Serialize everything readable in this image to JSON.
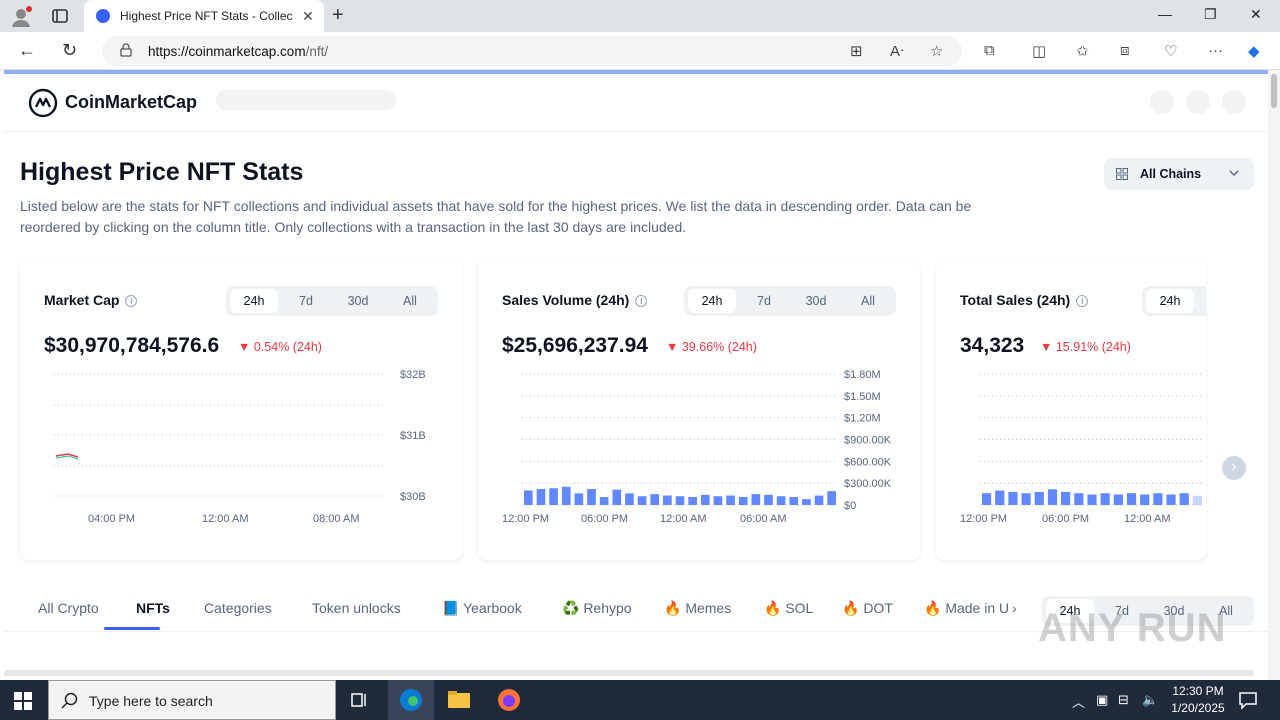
{
  "browser": {
    "tab_title": "Highest Price NFT Stats - Collecti",
    "url_host": "https://coinmarketcap.com",
    "url_path": "/nft/"
  },
  "site": {
    "logo_text": "CoinMarketCap"
  },
  "page": {
    "title": "Highest Price NFT Stats",
    "description": "Listed below are the stats for NFT collections and individual assets that have sold for the highest prices. We list the data in descending order. Data can be reordered by clicking on the column title. Only collections with a transaction in the last 30 days are included.",
    "chains_label": "All Chains"
  },
  "periods": [
    "24h",
    "7d",
    "30d",
    "All"
  ],
  "cards": [
    {
      "title": "Market Cap",
      "value": "$30,970,784,576.6",
      "change": "0.54% (24h)",
      "y_ticks": [
        "$32B",
        "$31B",
        "$30B"
      ],
      "x_ticks": [
        "04:00 PM",
        "12:00 AM",
        "08:00 AM"
      ]
    },
    {
      "title": "Sales Volume (24h)",
      "value": "$25,696,237.94",
      "change": "39.66% (24h)",
      "y_ticks": [
        "$1.80M",
        "$1.50M",
        "$1.20M",
        "$900.00K",
        "$600.00K",
        "$300.00K",
        "$0"
      ],
      "x_ticks": [
        "12:00 PM",
        "06:00 PM",
        "12:00 AM",
        "06:00 AM"
      ],
      "bars": [
        200,
        220,
        230,
        250,
        160,
        220,
        110,
        210,
        160,
        120,
        150,
        130,
        120,
        110,
        140,
        120,
        130,
        110,
        150,
        140,
        120,
        110,
        80,
        130,
        190
      ]
    },
    {
      "title": "Total Sales (24h)",
      "value": "34,323",
      "change": "15.91% (24h)",
      "x_ticks": [
        "12:00 PM",
        "06:00 PM",
        "12:00 AM"
      ],
      "bars": [
        9,
        11,
        10,
        9,
        10,
        12,
        10,
        9,
        8,
        9,
        8,
        9,
        8,
        9,
        8,
        9,
        7
      ]
    }
  ],
  "nav_tabs": [
    "All Crypto",
    "NFTs",
    "Categories",
    "Token unlocks",
    "📘 Yearbook",
    "♻️ Rehypo",
    "🔥 Memes",
    "🔥 SOL",
    "🔥 DOT",
    "🔥 Made in U"
  ],
  "taskbar": {
    "search_placeholder": "Type here to search",
    "time": "12:30 PM",
    "date": "1/20/2025"
  },
  "watermark": "ANY RUN"
}
